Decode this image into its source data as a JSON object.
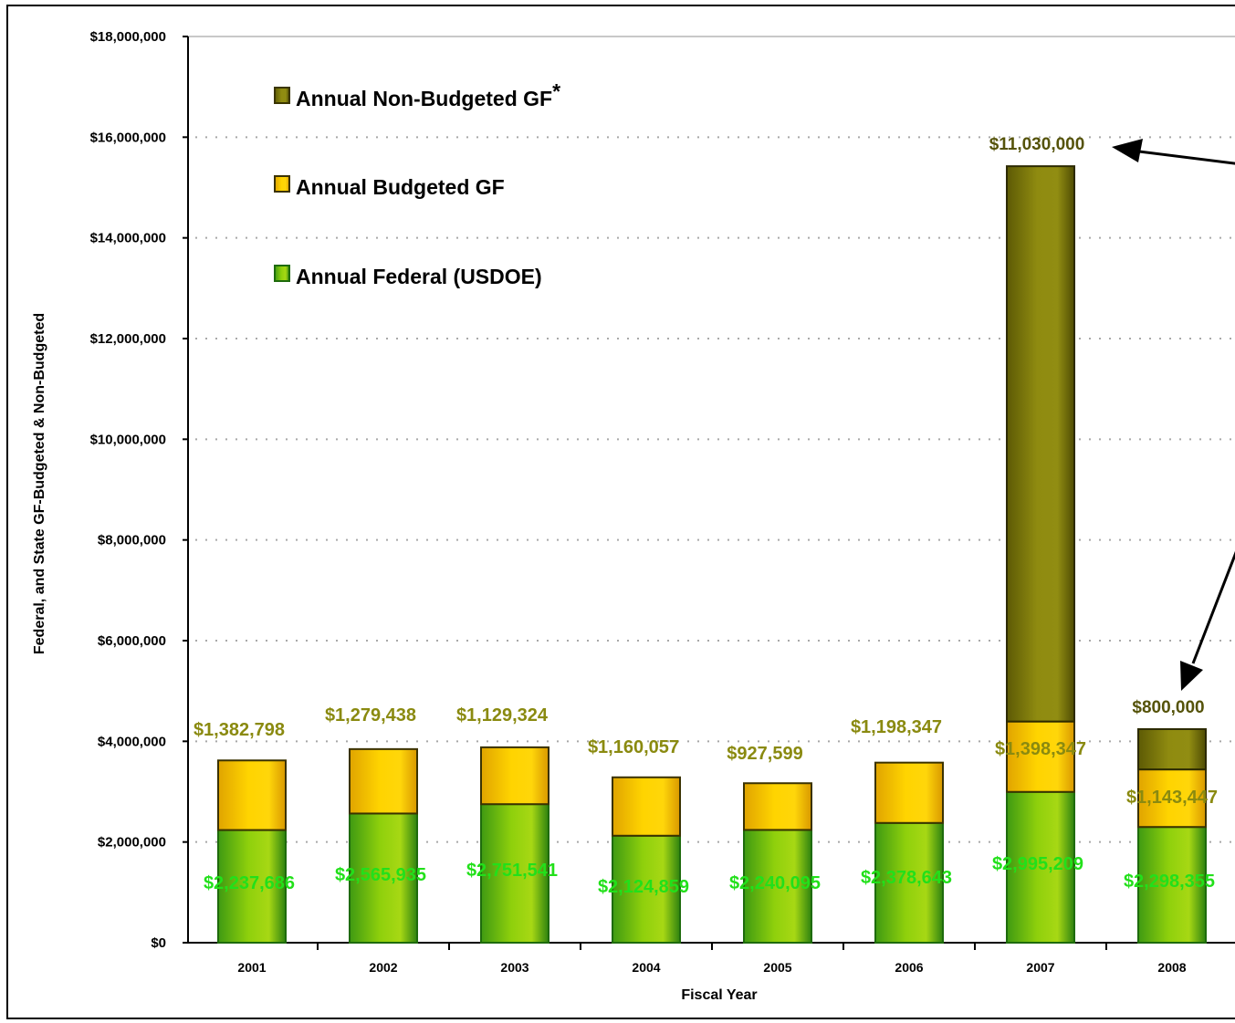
{
  "chart_data": {
    "type": "bar",
    "stacked": true,
    "xlabel": "Fiscal Year",
    "ylabel": "Federal, and State GF-Budgeted & Non-Budgeted",
    "ylim": [
      0,
      18000000
    ],
    "y_ticks": [
      "$0",
      "$2,000,000",
      "$4,000,000",
      "$6,000,000",
      "$8,000,000",
      "$10,000,000",
      "$12,000,000",
      "$14,000,000",
      "$16,000,000",
      "$18,000,000"
    ],
    "grid": "horizontal dotted",
    "legend_position": "top-left",
    "categories": [
      "2001",
      "2002",
      "2003",
      "2004",
      "2005",
      "2006",
      "2007",
      "2008"
    ],
    "series": [
      {
        "name": "Annual Federal (USDOE)",
        "color": "#7cc20a",
        "values": [
          2237686,
          2565935,
          2751541,
          2124859,
          2240095,
          2378643,
          2995209,
          2298355
        ],
        "labels": [
          "$2,237,686",
          "$2,565,935",
          "$2,751,541",
          "$2,124,859",
          "$2,240,095",
          "$2,378,643",
          "$2,995,209",
          "$2,298,355"
        ]
      },
      {
        "name": "Annual Budgeted GF",
        "color": "#f7c800",
        "values": [
          1382798,
          1279438,
          1129324,
          1160057,
          927599,
          1198347,
          1398347,
          1143447
        ],
        "labels": [
          "$1,382,798",
          "$1,279,438",
          "$1,129,324",
          "$1,160,057",
          "$927,599",
          "$1,198,347",
          "$1,398,347",
          "$1,143,447"
        ]
      },
      {
        "name": "Annual Non-Budgeted GF",
        "color": "#8d8a10",
        "values": [
          0,
          0,
          0,
          0,
          0,
          0,
          11030000,
          800000
        ],
        "labels": [
          "",
          "",
          "",
          "",
          "",
          "",
          "$11,030,000",
          "$800,000"
        ]
      }
    ],
    "legend": [
      {
        "label": "Annual Non-Budgeted GF",
        "superscript": "*",
        "color": "#8d8a10"
      },
      {
        "label": "Annual Budgeted GF",
        "color": "#f7c800"
      },
      {
        "label": "Annual Federal (USDOE)",
        "color": "#7cc20a"
      }
    ]
  }
}
